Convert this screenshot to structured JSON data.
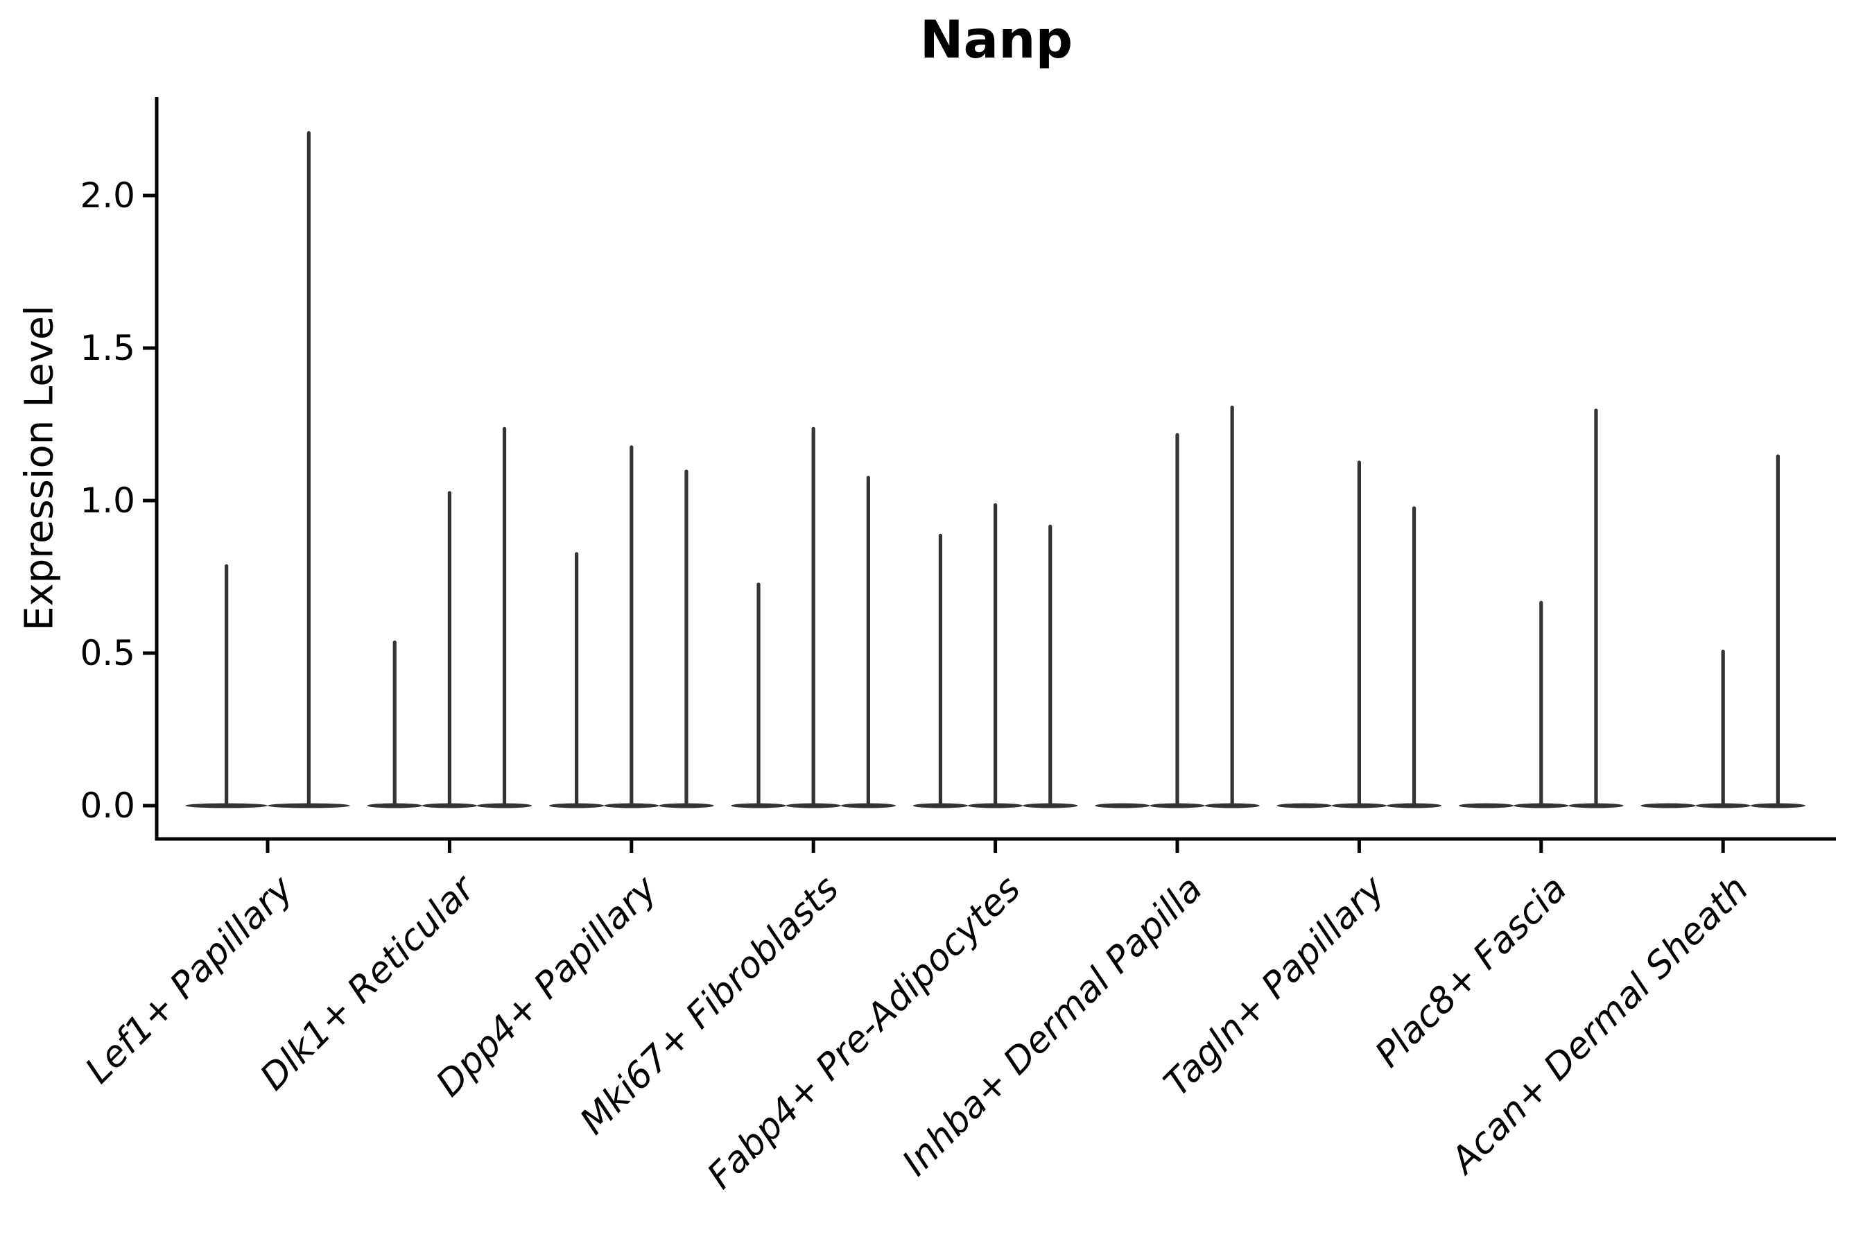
{
  "figure": {
    "title": "Nanp",
    "ylabel": "Expression Level"
  },
  "chart_data": {
    "type": "violin",
    "title": "Nanp",
    "xlabel": "",
    "ylabel": "Expression Level",
    "ylim": [
      -0.11,
      2.32
    ],
    "yticks": [
      0.0,
      0.5,
      1.0,
      1.5,
      2.0
    ],
    "ytick_labels": [
      "0.0",
      "0.5",
      "1.0",
      "1.5",
      "2.0"
    ],
    "grid": false,
    "legend_position": "none",
    "x_tick_rotation_deg": 45,
    "violin_color": "#333333",
    "axis_color": "#000000",
    "categories": [
      {
        "label": "Lef1+ Papillary",
        "violin_max": [
          0.79,
          2.21
        ]
      },
      {
        "label": "Dlk1+ Reticular",
        "violin_max": [
          0.54,
          1.03,
          1.24
        ]
      },
      {
        "label": "Dpp4+ Papillary",
        "violin_max": [
          0.83,
          1.18,
          1.1
        ]
      },
      {
        "label": "Mki67+ Fibroblasts",
        "violin_max": [
          0.73,
          1.24,
          1.08
        ]
      },
      {
        "label": "Fabp4+ Pre-Adipocytes",
        "violin_max": [
          0.89,
          0.99,
          0.92
        ]
      },
      {
        "label": "Inhba+ Dermal Papilla",
        "violin_max": [
          0.0,
          1.22,
          1.31
        ]
      },
      {
        "label": "Tagln+ Papillary",
        "violin_max": [
          0.0,
          1.13,
          0.98
        ]
      },
      {
        "label": "Plac8+ Fascia",
        "violin_max": [
          0.0,
          0.67,
          1.3
        ]
      },
      {
        "label": "Acan+ Dermal Sheath",
        "violin_max": [
          0.0,
          0.51,
          1.15
        ]
      }
    ]
  }
}
